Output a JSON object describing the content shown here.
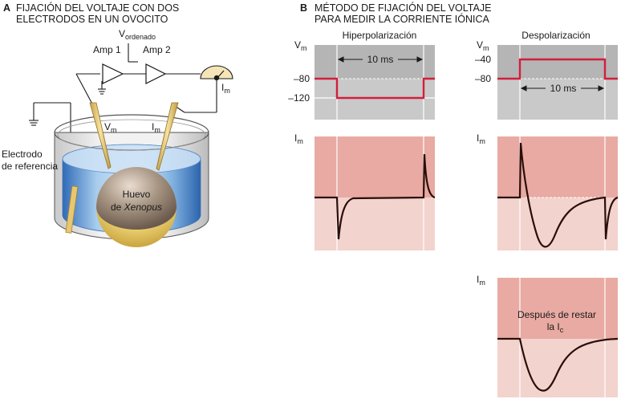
{
  "panel_a": {
    "letter": "A",
    "title_line1": "FIJACIÓN DEL VOLTAJE CON DOS",
    "title_line2": "ELECTRODOS EN UN OVOCITO",
    "v_ordered_main": "V",
    "v_ordered_sub": "ordenado",
    "amp1": "Amp 1",
    "amp2": "Amp 2",
    "im_main": "I",
    "im_sub": "m",
    "vm_main": "V",
    "vm_sub": "m",
    "im_electrode_main": "I",
    "im_electrode_sub": "m",
    "reference_line1": "Electrodo",
    "reference_line2": "de referencia",
    "egg_line1": "Huevo",
    "egg_line2_prefix": "de ",
    "egg_line2_italic": "Xenopus"
  },
  "panel_b": {
    "letter": "B",
    "title_line1": "MÉTODO DE FIJACIÓN DEL VOLTAJE",
    "title_line2": "PARA MEDIR LA CORRIENTE IÓNICA",
    "hyper_title": "Hiperpolarización",
    "depol_title": "Despolarización",
    "vm_main": "V",
    "vm_sub": "m",
    "im_main": "I",
    "im_sub": "m",
    "hyper_ticks": [
      "–80",
      "–120"
    ],
    "depol_ticks": [
      "–40",
      "–80"
    ],
    "duration_hyper": "10 ms",
    "duration_depol": "10 ms",
    "after_line1": "Después de restar",
    "after_line2_prefix": "la I",
    "after_line2_sub": "c"
  },
  "colors": {
    "trace_red": "#d21f3c",
    "trace_dark": "#2a0e0a",
    "bg_gray": "#c8c8c8",
    "bg_gray_dark": "#b4b4b4",
    "bg_pink": "#e8a8a0",
    "bg_pink_light": "#f3d3cd",
    "water_blue": "#4d86c8",
    "electrode_yellow": "#e8c770"
  }
}
